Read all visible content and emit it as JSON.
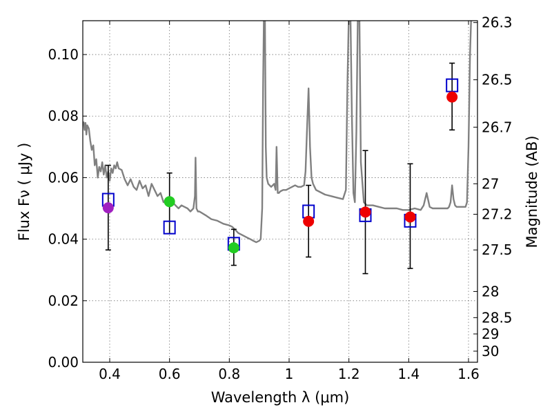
{
  "chart_data": {
    "type": "scatter",
    "xlabel": "Wavelength  λ (μm)",
    "ylabel": "Flux  Fν  ( μJy )",
    "ylabel_right": "Magnitude (AB)",
    "xlim": [
      0.31,
      1.63
    ],
    "ylim": [
      0.0,
      0.111
    ],
    "x_ticks": [
      0.4,
      0.6,
      0.8,
      1.0,
      1.2,
      1.4,
      1.6
    ],
    "x_tick_labels": [
      "0.4",
      "0.6",
      "0.8",
      "1",
      "1.2",
      "1.4",
      "1.6"
    ],
    "y_ticks": [
      0.0,
      0.02,
      0.04,
      0.06,
      0.08,
      0.1
    ],
    "y_tick_labels": [
      "0.00",
      "0.02",
      "0.04",
      "0.06",
      "0.08",
      "0.10"
    ],
    "right_ticks": [
      {
        "label": "26.3",
        "flux": 0.1104
      },
      {
        "label": "26.5",
        "flux": 0.0918
      },
      {
        "label": "26.7",
        "flux": 0.0764
      },
      {
        "label": "27",
        "flux": 0.058
      },
      {
        "label": "27.2",
        "flux": 0.0481
      },
      {
        "label": "27.5",
        "flux": 0.0365
      },
      {
        "label": "28",
        "flux": 0.023
      },
      {
        "label": "28.5",
        "flux": 0.0145
      },
      {
        "label": "29",
        "flux": 0.0092
      },
      {
        "label": "30",
        "flux": 0.0036
      }
    ],
    "grid": true,
    "observed_points": [
      {
        "x": 0.395,
        "y": 0.0502,
        "err_low": 0.0365,
        "err_high": 0.064,
        "color": "#a020c0"
      },
      {
        "x": 0.6,
        "y": 0.0522,
        "err_low": 0.0418,
        "err_high": 0.0615,
        "color": "#22cc22"
      },
      {
        "x": 0.815,
        "y": 0.0372,
        "err_low": 0.0315,
        "err_high": 0.0432,
        "color": "#22cc22"
      },
      {
        "x": 1.065,
        "y": 0.0458,
        "err_low": 0.0342,
        "err_high": 0.0575,
        "color": "#ee0000"
      },
      {
        "x": 1.255,
        "y": 0.0488,
        "err_low": 0.0288,
        "err_high": 0.0688,
        "color": "#ee0000"
      },
      {
        "x": 1.405,
        "y": 0.0472,
        "err_low": 0.0305,
        "err_high": 0.0645,
        "color": "#ee0000"
      },
      {
        "x": 1.545,
        "y": 0.0862,
        "err_low": 0.0755,
        "err_high": 0.0972,
        "color": "#ee0000"
      }
    ],
    "model_points": [
      {
        "x": 0.395,
        "y": 0.0528
      },
      {
        "x": 0.6,
        "y": 0.0438
      },
      {
        "x": 0.815,
        "y": 0.0385
      },
      {
        "x": 1.065,
        "y": 0.049
      },
      {
        "x": 1.255,
        "y": 0.0478
      },
      {
        "x": 1.405,
        "y": 0.046
      },
      {
        "x": 1.545,
        "y": 0.09
      }
    ],
    "spectrum": {
      "color": "#808080",
      "x": [
        0.31,
        0.313,
        0.316,
        0.319,
        0.322,
        0.325,
        0.33,
        0.335,
        0.34,
        0.345,
        0.35,
        0.355,
        0.36,
        0.365,
        0.37,
        0.375,
        0.38,
        0.385,
        0.39,
        0.395,
        0.4,
        0.405,
        0.41,
        0.415,
        0.42,
        0.425,
        0.43,
        0.44,
        0.45,
        0.46,
        0.47,
        0.48,
        0.49,
        0.5,
        0.51,
        0.52,
        0.53,
        0.54,
        0.55,
        0.56,
        0.57,
        0.58,
        0.59,
        0.6,
        0.61,
        0.62,
        0.63,
        0.64,
        0.65,
        0.66,
        0.67,
        0.68,
        0.685,
        0.687,
        0.69,
        0.695,
        0.7,
        0.72,
        0.74,
        0.76,
        0.78,
        0.8,
        0.81,
        0.82,
        0.83,
        0.84,
        0.85,
        0.86,
        0.87,
        0.88,
        0.89,
        0.9,
        0.905,
        0.91,
        0.913,
        0.916,
        0.919,
        0.922,
        0.925,
        0.93,
        0.935,
        0.94,
        0.945,
        0.95,
        0.955,
        0.958,
        0.962,
        0.966,
        0.97,
        0.98,
        0.99,
        1.0,
        1.01,
        1.02,
        1.03,
        1.04,
        1.05,
        1.055,
        1.06,
        1.065,
        1.07,
        1.075,
        1.08,
        1.085,
        1.09,
        1.1,
        1.12,
        1.14,
        1.16,
        1.18,
        1.19,
        1.195,
        1.2,
        1.205,
        1.21,
        1.215,
        1.22,
        1.225,
        1.23,
        1.235,
        1.24,
        1.25,
        1.26,
        1.28,
        1.3,
        1.32,
        1.34,
        1.36,
        1.38,
        1.4,
        1.42,
        1.44,
        1.45,
        1.46,
        1.47,
        1.48,
        1.5,
        1.52,
        1.53,
        1.535,
        1.54,
        1.545,
        1.55,
        1.555,
        1.56,
        1.57,
        1.58,
        1.59,
        1.595,
        1.6,
        1.605,
        1.61,
        1.615,
        1.62,
        1.63
      ],
      "y": [
        0.077,
        0.078,
        0.0755,
        0.0778,
        0.074,
        0.077,
        0.076,
        0.072,
        0.069,
        0.0705,
        0.064,
        0.066,
        0.06,
        0.0635,
        0.062,
        0.065,
        0.061,
        0.064,
        0.06,
        0.062,
        0.059,
        0.063,
        0.0615,
        0.064,
        0.063,
        0.065,
        0.063,
        0.0625,
        0.0595,
        0.0575,
        0.0595,
        0.057,
        0.056,
        0.059,
        0.0565,
        0.0575,
        0.054,
        0.058,
        0.056,
        0.054,
        0.055,
        0.052,
        0.053,
        0.051,
        0.052,
        0.051,
        0.05,
        0.051,
        0.0505,
        0.05,
        0.049,
        0.05,
        0.054,
        0.0665,
        0.05,
        0.049,
        0.049,
        0.0478,
        0.0465,
        0.046,
        0.045,
        0.0445,
        0.044,
        0.043,
        0.042,
        0.0415,
        0.041,
        0.0405,
        0.04,
        0.0395,
        0.039,
        0.0395,
        0.04,
        0.05,
        0.09,
        0.115,
        0.115,
        0.07,
        0.06,
        0.058,
        0.0575,
        0.057,
        0.0575,
        0.058,
        0.056,
        0.07,
        0.055,
        0.055,
        0.0555,
        0.056,
        0.056,
        0.0565,
        0.057,
        0.0575,
        0.057,
        0.057,
        0.0575,
        0.062,
        0.076,
        0.089,
        0.07,
        0.06,
        0.058,
        0.057,
        0.056,
        0.0555,
        0.0545,
        0.054,
        0.0535,
        0.053,
        0.056,
        0.09,
        0.115,
        0.115,
        0.08,
        0.055,
        0.052,
        0.075,
        0.115,
        0.115,
        0.065,
        0.052,
        0.051,
        0.051,
        0.0505,
        0.05,
        0.05,
        0.05,
        0.0495,
        0.0495,
        0.05,
        0.0495,
        0.051,
        0.055,
        0.0505,
        0.05,
        0.05,
        0.05,
        0.05,
        0.0505,
        0.052,
        0.0575,
        0.053,
        0.051,
        0.0505,
        0.0505,
        0.0505,
        0.0505,
        0.052,
        0.07,
        0.1,
        0.115,
        0.115,
        0.115,
        0.115
      ]
    }
  }
}
